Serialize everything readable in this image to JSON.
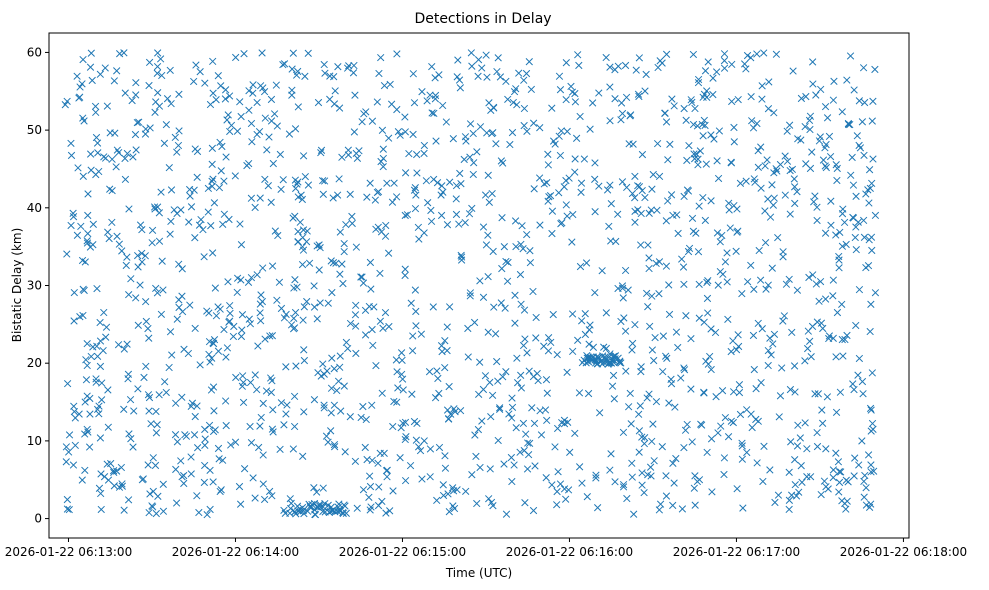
{
  "chart_data": {
    "type": "scatter",
    "title": "Detections in Delay",
    "xlabel": "Time (UTC)",
    "ylabel": "Bistatic Delay (km)",
    "marker": "x",
    "color": "#1f77b4",
    "grid": false,
    "xlim": [
      "2026-01-22 06:12:53",
      "2026-01-22 06:18:02"
    ],
    "ylim": [
      -2.5,
      62.5
    ],
    "x_ticks": [
      "2026-01-22 06:13:00",
      "2026-01-22 06:14:00",
      "2026-01-22 06:15:00",
      "2026-01-22 06:16:00",
      "2026-01-22 06:17:00",
      "2026-01-22 06:18:00"
    ],
    "y_ticks": [
      0,
      10,
      20,
      30,
      40,
      50,
      60
    ],
    "data_range": {
      "x": [
        "2026-01-22 06:12:58",
        "2026-01-22 06:17:50"
      ],
      "y": [
        0.5,
        60
      ]
    },
    "clusters": [
      {
        "x": [
          "2026-01-22 06:14:18",
          "2026-01-22 06:14:40"
        ],
        "y": [
          0.5,
          2.0
        ]
      },
      {
        "x": [
          "2026-01-22 06:16:05",
          "2026-01-22 06:16:18"
        ],
        "y": [
          19.8,
          21.0
        ]
      }
    ],
    "point_count": 1800
  }
}
